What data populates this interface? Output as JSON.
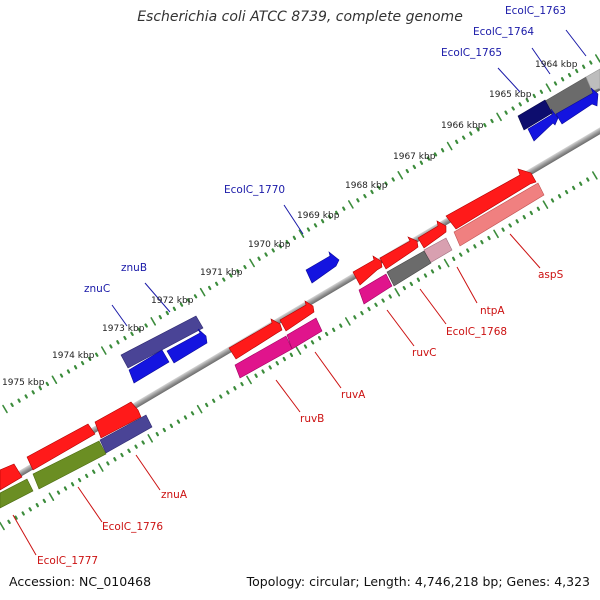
{
  "title": "Escherichia coli ATCC 8739, complete genome",
  "footer": {
    "accession": "Accession: NC_010468",
    "stats": "Topology: circular; Length: 4,746,218 bp; Genes: 4,323"
  },
  "colors": {
    "backbone": "#8c8c8c",
    "tick": "#3c8c3c",
    "label_blue": "#1a1aa8",
    "label_red": "#cc1111",
    "label_black": "#222222"
  },
  "kbp_labels": [
    "1964 kbp",
    "1965 kbp",
    "1966 kbp",
    "1967 kbp",
    "1968 kbp",
    "1969 kbp",
    "1970 kbp",
    "1971 kbp",
    "1972 kbp",
    "1973 kbp",
    "1974 kbp",
    "1975 kbp"
  ],
  "top_gene_labels": [
    "EcolC_1763",
    "EcolC_1764",
    "EcolC_1765",
    "EcolC_1770",
    "znuB",
    "znuC"
  ],
  "bottom_gene_labels": [
    "aspS",
    "ntpA",
    "EcolC_1768",
    "ruvC",
    "ruvA",
    "ruvB",
    "znuA",
    "EcolC_1776",
    "EcolC_1777"
  ]
}
